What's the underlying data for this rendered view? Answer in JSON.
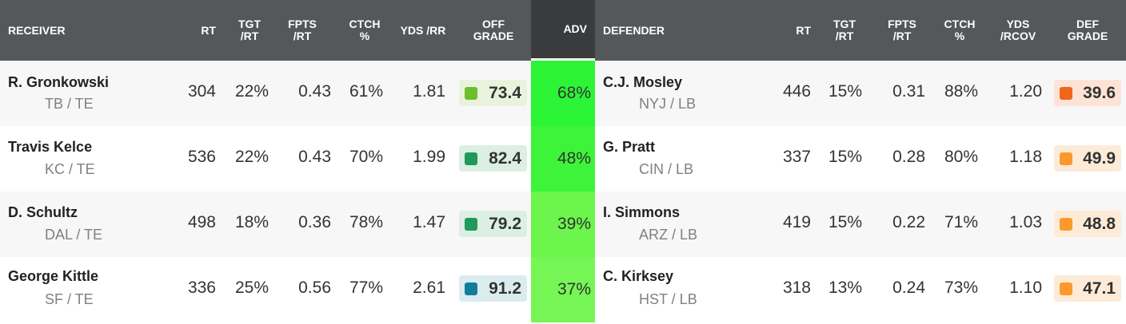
{
  "headers": {
    "receiver": "RECEIVER",
    "rt": "RT",
    "tgt_rt": "TGT\n/RT",
    "fpts_rt": "FPTS\n/RT",
    "ctch": "CTCH\n%",
    "yds_rr": "YDS /RR",
    "off_grade": "OFF\nGRADE",
    "adv": "ADV",
    "defender": "DEFENDER",
    "d_rt": "RT",
    "d_tgt_rt": "TGT\n/RT",
    "d_fpts_rt": "FPTS\n/RT",
    "d_ctch": "CTCH\n%",
    "yds_rcov": "YDS\n/RCOV",
    "def_grade": "DEF\nGRADE"
  },
  "rows": [
    {
      "receiver": {
        "name": "R. Gronkowski",
        "team": "TB / TE",
        "rt": "304",
        "tgt_rt": "22%",
        "fpts_rt": "0.43",
        "ctch": "61%",
        "yds_rr": "1.81",
        "grade": "73.4",
        "grade_color": "#6cbf2c",
        "grade_bg": "#e8f3dd"
      },
      "adv": "68%",
      "adv_color": "#2cf436",
      "defender": {
        "name": "C.J. Mosley",
        "team": "NYJ / LB",
        "rt": "446",
        "tgt_rt": "15%",
        "fpts_rt": "0.31",
        "ctch": "88%",
        "yds": "1.20",
        "grade": "39.6",
        "grade_color": "#f0651c",
        "grade_bg": "#fde3d6"
      }
    },
    {
      "receiver": {
        "name": "Travis Kelce",
        "team": "KC / TE",
        "rt": "536",
        "tgt_rt": "22%",
        "fpts_rt": "0.43",
        "ctch": "70%",
        "yds_rr": "1.99",
        "grade": "82.4",
        "grade_color": "#1f9a58",
        "grade_bg": "#dcefe3"
      },
      "adv": "48%",
      "adv_color": "#3ef43a",
      "defender": {
        "name": "G. Pratt",
        "team": "CIN / LB",
        "rt": "337",
        "tgt_rt": "15%",
        "fpts_rt": "0.28",
        "ctch": "80%",
        "yds": "1.18",
        "grade": "49.9",
        "grade_color": "#fb9a2c",
        "grade_bg": "#fdebd8"
      }
    },
    {
      "receiver": {
        "name": "D. Schultz",
        "team": "DAL / TE",
        "rt": "498",
        "tgt_rt": "18%",
        "fpts_rt": "0.36",
        "ctch": "78%",
        "yds_rr": "1.47",
        "grade": "79.2",
        "grade_color": "#1f9a58",
        "grade_bg": "#dcefe3"
      },
      "adv": "39%",
      "adv_color": "#6cf54c",
      "defender": {
        "name": "I. Simmons",
        "team": "ARZ / LB",
        "rt": "419",
        "tgt_rt": "15%",
        "fpts_rt": "0.22",
        "ctch": "71%",
        "yds": "1.03",
        "grade": "48.8",
        "grade_color": "#fb9a2c",
        "grade_bg": "#fdebd8"
      }
    },
    {
      "receiver": {
        "name": "George Kittle",
        "team": "SF / TE",
        "rt": "336",
        "tgt_rt": "25%",
        "fpts_rt": "0.56",
        "ctch": "77%",
        "yds_rr": "2.61",
        "grade": "91.2",
        "grade_color": "#117d9a",
        "grade_bg": "#dbecf1"
      },
      "adv": "37%",
      "adv_color": "#76f655",
      "defender": {
        "name": "C. Kirksey",
        "team": "HST / LB",
        "rt": "318",
        "tgt_rt": "13%",
        "fpts_rt": "0.24",
        "ctch": "73%",
        "yds": "1.10",
        "grade": "47.1",
        "grade_color": "#fb9a2c",
        "grade_bg": "#fdebd8"
      }
    }
  ]
}
